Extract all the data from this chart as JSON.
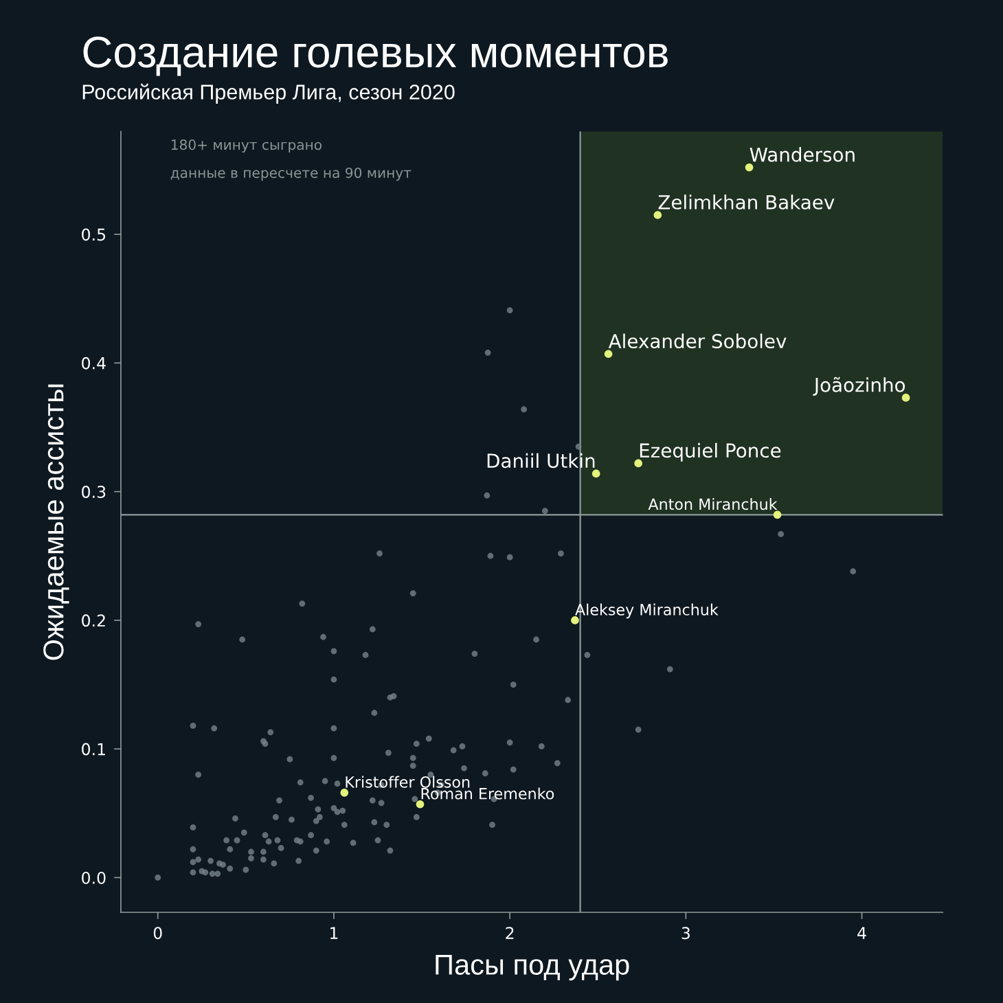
{
  "chart_data": {
    "type": "scatter",
    "title": "Создание голевых моментов",
    "subtitle": "Российская Премьер Лига, сезон 2020",
    "xlabel": "Пасы под удар",
    "ylabel": "Ожидаемые ассисты",
    "xlim": [
      -0.21,
      4.46
    ],
    "ylim": [
      -0.027,
      0.58
    ],
    "xticks": [
      0,
      1,
      2,
      3,
      4
    ],
    "yticks": [
      {
        "value": 0,
        "label": "0.0"
      },
      {
        "value": 0.1,
        "label": "0.1"
      },
      {
        "value": 0.2,
        "label": "0.2"
      },
      {
        "value": 0.3,
        "label": "0.3"
      },
      {
        "value": 0.4,
        "label": "0.4"
      },
      {
        "value": 0.5,
        "label": "0.5"
      }
    ],
    "grid": false,
    "marker": "circle",
    "ref_lines": [
      {
        "axis": "x",
        "value": 2.4,
        "color": "#8e9c9c"
      },
      {
        "axis": "y",
        "value": 0.282,
        "color": "#8e9c9c"
      }
    ],
    "bands": [
      {
        "axis": "x",
        "from": 2.4,
        "to": 4.46,
        "color": "#203222"
      }
    ],
    "series": [
      {
        "color": "#76858a",
        "x": [
          2.0,
          1.875,
          2.08,
          2.39,
          1.87,
          2.2,
          3.54,
          3.95,
          1.26,
          1.89,
          2.0,
          2.29,
          1.45,
          0.82,
          0.23,
          0.48,
          0.94,
          1.22,
          1.0,
          1.18,
          1.8,
          2.15,
          2.44,
          2.91,
          1.0,
          2.02,
          2.33,
          1.32,
          1.34,
          1.23,
          2.73,
          0.2,
          0.32,
          1.0,
          0.64,
          0.6,
          0.61,
          1.54,
          1.47,
          1.73,
          1.68,
          2.0,
          2.18,
          1.31,
          1.45,
          0.75,
          1.0,
          2.27,
          1.45,
          1.74,
          2.02,
          1.86,
          0.23,
          1.55,
          0.95,
          0.81,
          1.02,
          1.27,
          1.61,
          1.59,
          1.46,
          1.91,
          0.87,
          0.69,
          1.22,
          1.27,
          0.91,
          1.02,
          1.05,
          1.0,
          0.76,
          0.44,
          0.67,
          0.92,
          1.47,
          1.9,
          1.23,
          1.3,
          0.2,
          1.06,
          0.9,
          0.87,
          0.96,
          1.11,
          1.25,
          0.49,
          0.61,
          0.39,
          0.45,
          0.63,
          0.68,
          0.79,
          0.81,
          0.9,
          0.7,
          1.32,
          0.2,
          0.41,
          0.53,
          0.6,
          0.53,
          0.6,
          0.8,
          0.66,
          0.23,
          0.3,
          0.2,
          0.35,
          0.37,
          0.41,
          0.5,
          0.2,
          0.25,
          0.27,
          0.31,
          0.34,
          0
        ],
        "values": [
          0.441,
          0.408,
          0.364,
          0.335,
          0.297,
          0.285,
          0.267,
          0.238,
          0.252,
          0.25,
          0.249,
          0.252,
          0.221,
          0.213,
          0.197,
          0.185,
          0.187,
          0.193,
          0.176,
          0.173,
          0.174,
          0.185,
          0.173,
          0.162,
          0.154,
          0.15,
          0.138,
          0.14,
          0.141,
          0.128,
          0.115,
          0.118,
          0.116,
          0.116,
          0.113,
          0.106,
          0.104,
          0.108,
          0.104,
          0.102,
          0.099,
          0.105,
          0.102,
          0.097,
          0.093,
          0.092,
          0.093,
          0.089,
          0.087,
          0.085,
          0.084,
          0.081,
          0.08,
          0.08,
          0.075,
          0.074,
          0.073,
          0.072,
          0.072,
          0.066,
          0.061,
          0.061,
          0.062,
          0.06,
          0.06,
          0.058,
          0.053,
          0.051,
          0.052,
          0.054,
          0.045,
          0.046,
          0.047,
          0.047,
          0.047,
          0.041,
          0.043,
          0.041,
          0.039,
          0.041,
          0.044,
          0.033,
          0.028,
          0.027,
          0.029,
          0.035,
          0.033,
          0.029,
          0.029,
          0.028,
          0.029,
          0.029,
          0.028,
          0.021,
          0.023,
          0.021,
          0.022,
          0.022,
          0.02,
          0.02,
          0.015,
          0.014,
          0.013,
          0.011,
          0.014,
          0.013,
          0.012,
          0.011,
          0.01,
          0.007,
          0.006,
          0.004,
          0.005,
          0.004,
          0.003,
          0.003,
          0
        ]
      },
      {
        "color": "#e2f27c",
        "x": [
          3.36,
          2.84,
          2.56,
          4.25,
          2.73,
          2.49,
          3.52,
          2.37,
          1.06,
          1.49
        ],
        "values": [
          0.552,
          0.515,
          0.407,
          0.373,
          0.322,
          0.314,
          0.282,
          0.2,
          0.066,
          0.057
        ]
      }
    ],
    "annotations": [
      "180+ минут сыграно",
      "данные в пересчете на 90 минут",
      {
        "text": "Wanderson",
        "x": 3.36,
        "y": 0.552
      },
      {
        "text": "Zelimkhan Bakaev",
        "x": 2.84,
        "y": 0.515
      },
      {
        "text": "Alexander Sobolev",
        "x": 2.56,
        "y": 0.407
      },
      {
        "text": "Joãozinho",
        "x": 4.25,
        "y": 0.373
      },
      {
        "text": "Ezequiel Ponce",
        "x": 2.73,
        "y": 0.322
      },
      {
        "text": "Daniil Utkin",
        "x": 2.49,
        "y": 0.314
      },
      {
        "text": "Anton Miranchuk",
        "x": 3.52,
        "y": 0.282
      },
      {
        "text": "Aleksey Miranchuk",
        "x": 2.37,
        "y": 0.2
      },
      {
        "text": "Kristoffer Olsson",
        "x": 1.06,
        "y": 0.066
      },
      {
        "text": "Roman Eremenko",
        "x": 1.49,
        "y": 0.057
      }
    ]
  }
}
